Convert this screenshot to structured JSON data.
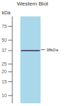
{
  "chart_data": {
    "type": "gel",
    "title": "Western Blot",
    "ylabel": "kDa",
    "log": "y",
    "ylim": [
      8,
      100
    ],
    "yticks": [
      75,
      50,
      37,
      25,
      20,
      15,
      10
    ],
    "band": 37,
    "annotation": {
      "value": 38,
      "label": "38kDa"
    },
    "color": "#a8d8ea",
    "grid": false
  }
}
